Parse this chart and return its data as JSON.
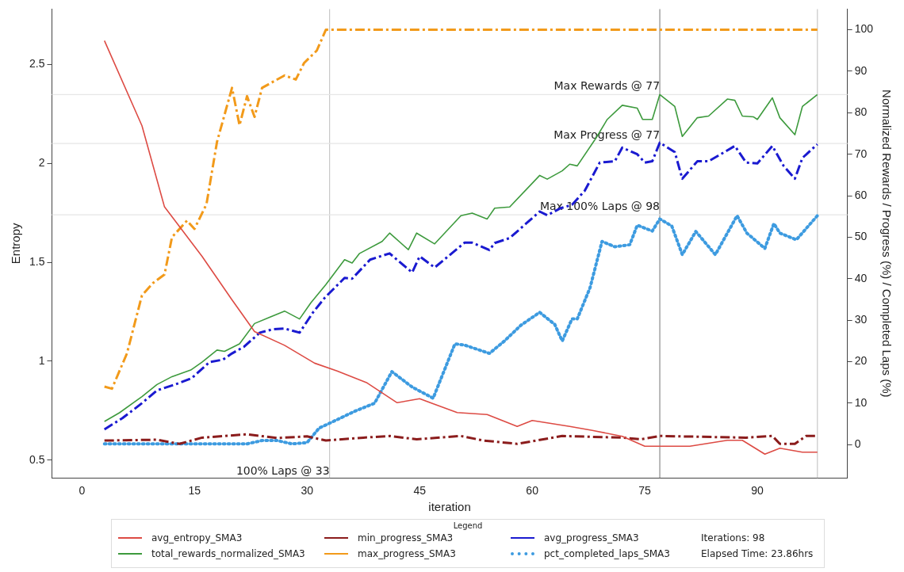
{
  "chart_data": {
    "type": "line",
    "xlabel": "iteration",
    "ylabel": "Entropy",
    "y2label": "Normalized Rewards / Progress (%) / Completed Laps (%)",
    "legend_title": "Legend",
    "legend": "bottom",
    "xlim": [
      -4,
      102
    ],
    "xticks": [
      0,
      15,
      30,
      45,
      60,
      75,
      90
    ],
    "ylim": [
      0.41,
      2.78
    ],
    "yticks": [
      0.5,
      1.0,
      1.5,
      2.0,
      2.5
    ],
    "y2lim": [
      -8,
      105
    ],
    "y2ticks": [
      0,
      10,
      20,
      30,
      40,
      50,
      60,
      70,
      80,
      90,
      100
    ],
    "series": [
      {
        "name": "avg_entropy_SMA3",
        "color": "#dd4b44",
        "line_style": "solid",
        "x": [
          3,
          8,
          11,
          16,
          20,
          23,
          27,
          31,
          34,
          38,
          42,
          45,
          50,
          54,
          58,
          60,
          65,
          68,
          72,
          75,
          78,
          81,
          86,
          88,
          91,
          93,
          96,
          98
        ],
        "values": [
          2.62,
          2.19,
          1.78,
          1.53,
          1.31,
          1.15,
          1.08,
          0.99,
          0.95,
          0.89,
          0.79,
          0.81,
          0.74,
          0.73,
          0.67,
          0.7,
          0.67,
          0.65,
          0.62,
          0.57,
          0.57,
          0.57,
          0.6,
          0.6,
          0.53,
          0.56,
          0.54,
          0.54
        ]
      },
      {
        "name": "total_rewards_normalized_SMA3",
        "color": "#3d9a3d",
        "line_style": "solid",
        "axis": "y2",
        "x": [
          3,
          5,
          8,
          10,
          12,
          14.5,
          16,
          18,
          19,
          21,
          23,
          25,
          27,
          29,
          30.5,
          32.5,
          35,
          36,
          37,
          40,
          41,
          43.5,
          44.6,
          47,
          50.5,
          52,
          54,
          55,
          57,
          61,
          62,
          64,
          65,
          66,
          68.5,
          70,
          72,
          74,
          74.7,
          76,
          77,
          79,
          80,
          82,
          83.5,
          86,
          87,
          88,
          89.5,
          90,
          92,
          93,
          95,
          96,
          98
        ],
        "values": [
          5.6,
          7.7,
          11.6,
          14.5,
          16.4,
          18,
          19.9,
          22.8,
          22.5,
          24.3,
          29.2,
          30.7,
          32.2,
          30.3,
          34.2,
          38.6,
          44.6,
          43.8,
          46.1,
          49,
          51,
          47,
          51,
          48.4,
          55.2,
          55.8,
          54.4,
          57,
          57.3,
          64.9,
          64,
          66,
          67.6,
          67.2,
          73.9,
          78.4,
          81.8,
          81.1,
          78.4,
          78.4,
          84.4,
          81.5,
          74.3,
          78.8,
          79.2,
          83.3,
          83,
          79.2,
          79,
          78.4,
          83.6,
          78.8,
          74.7,
          81.5,
          84.4
        ]
      },
      {
        "name": "min_progress_SMA3",
        "color": "#8b1c1c",
        "line_style": "dashdot",
        "axis": "y2",
        "x": [
          3,
          10,
          13,
          16,
          22,
          26,
          30,
          32.5,
          37.5,
          41,
          44.6,
          50.5,
          53.5,
          58,
          64,
          72,
          74.5,
          77,
          88.5,
          92,
          93,
          95,
          96.5,
          98
        ],
        "values": [
          1,
          1.2,
          0.2,
          1.7,
          2.5,
          1.6,
          2,
          1,
          1.7,
          2.1,
          1.3,
          2.1,
          1,
          0.2,
          2.1,
          1.7,
          1.3,
          2.1,
          1.7,
          2.1,
          0.2,
          0.2,
          2.1,
          2.1
        ]
      },
      {
        "name": "max_progress_SMA3",
        "color": "#f29a1a",
        "line_style": "dashdot",
        "axis": "y2",
        "x": [
          3,
          4,
          6,
          8,
          9.5,
          11,
          12,
          14,
          15,
          16.6,
          18,
          20,
          21,
          22,
          23,
          24,
          27,
          28.5,
          29.6,
          31.3,
          32.5,
          98
        ],
        "values": [
          14,
          13.5,
          22,
          36,
          39,
          41,
          50,
          54,
          52,
          58,
          73,
          86,
          77,
          84,
          79,
          86,
          89,
          88,
          92,
          95,
          100,
          100
        ]
      },
      {
        "name": "avg_progress_SMA3",
        "color": "#1a1ad0",
        "line_style": "dashdot",
        "axis": "y2",
        "x": [
          3,
          5.4,
          8,
          10,
          12.4,
          14.6,
          17,
          18.8,
          20,
          21.6,
          23.7,
          25.4,
          27,
          29,
          30.8,
          32.4,
          35,
          36,
          38.4,
          41,
          44,
          45,
          47,
          51,
          52,
          54.3,
          55,
          57,
          61,
          62,
          63.8,
          65.3,
          67,
          69,
          71,
          72,
          74,
          75,
          76,
          77,
          79,
          80,
          82,
          83.5,
          87,
          88.5,
          90,
          92,
          93.5,
          95,
          96,
          98
        ],
        "values": [
          3.7,
          6.4,
          10,
          13.1,
          14.5,
          16,
          19.9,
          20.5,
          22,
          23.6,
          27,
          27.8,
          28,
          27,
          31.9,
          35.5,
          40.2,
          40,
          44.6,
          46.1,
          41.5,
          45.4,
          42.7,
          48.7,
          48.7,
          46.9,
          48.6,
          49.8,
          56.2,
          55.3,
          57,
          57.8,
          61.2,
          68,
          68.3,
          71.6,
          70,
          68,
          68.3,
          72.8,
          70.5,
          64.1,
          68.3,
          68.3,
          72,
          68,
          67.8,
          72,
          67.2,
          64.1,
          69.1,
          72.4
        ]
      },
      {
        "name": "pct_completed_laps_SMA3",
        "color": "#3d9be0",
        "line_style": "dotted",
        "axis": "y2",
        "x": [
          3,
          10,
          13,
          16,
          22,
          24,
          26,
          28,
          30,
          31.6,
          33.5,
          36.4,
          39,
          41.3,
          44,
          46.8,
          49.7,
          51,
          54.3,
          56.3,
          58.5,
          61,
          63,
          64,
          65.3,
          66,
          67.7,
          69.3,
          71,
          73,
          74,
          76,
          77,
          78.6,
          80,
          81.8,
          84.4,
          87.3,
          88.6,
          91,
          92.2,
          93,
          95.2,
          98
        ],
        "values": [
          0.2,
          0.2,
          0.2,
          0.2,
          0.2,
          1,
          1,
          0.2,
          0.5,
          4,
          5.6,
          8.1,
          10,
          17.6,
          13.9,
          11.2,
          24.3,
          24,
          22,
          25,
          28.8,
          31.9,
          29,
          25,
          30.3,
          30.3,
          37.8,
          49,
          47.7,
          48.2,
          52.9,
          51.5,
          54.4,
          52.7,
          45.8,
          51.4,
          45.8,
          55.2,
          51,
          47.3,
          53.3,
          51,
          49.4,
          55.2
        ]
      }
    ],
    "ref_lines": [
      {
        "axis": "x",
        "value": 33,
        "label": "100% Laps @ 33",
        "color": "#c8c8c8"
      },
      {
        "axis": "x",
        "value": 77,
        "color": "#8a8a8a"
      },
      {
        "axis": "x",
        "value": 98,
        "color": "#c8c8c8"
      },
      {
        "axis": "y2",
        "value": 84.4,
        "color": "#e6e6e6",
        "label": "Max Rewards @ 77"
      },
      {
        "axis": "y2",
        "value": 72.6,
        "color": "#e6e6e6",
        "label": "Max Progress @ 77"
      },
      {
        "axis": "y2",
        "value": 55.4,
        "color": "#e6e6e6",
        "label": "Max 100% Laps @ 98"
      }
    ],
    "annotations": [
      "Iterations: 98",
      "Elapsed Time: 23.86hrs"
    ]
  }
}
